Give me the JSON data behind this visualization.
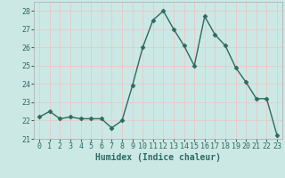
{
  "x": [
    0,
    1,
    2,
    3,
    4,
    5,
    6,
    7,
    8,
    9,
    10,
    11,
    12,
    13,
    14,
    15,
    16,
    17,
    18,
    19,
    20,
    21,
    22,
    23
  ],
  "y": [
    22.2,
    22.5,
    22.1,
    22.2,
    22.1,
    22.1,
    22.1,
    21.6,
    22.0,
    23.9,
    26.0,
    27.5,
    28.0,
    27.0,
    26.1,
    25.0,
    27.7,
    26.7,
    26.1,
    24.9,
    24.1,
    23.2,
    23.2,
    21.2
  ],
  "line_color": "#2d6b5e",
  "marker": "D",
  "markersize": 2.5,
  "linewidth": 1.0,
  "bg_color": "#cce8e4",
  "grid_color": "#e8c8c8",
  "xlabel": "Humidex (Indice chaleur)",
  "xlabel_fontsize": 7,
  "tick_fontsize": 6,
  "ylim": [
    21,
    28.5
  ],
  "yticks": [
    21,
    22,
    23,
    24,
    25,
    26,
    27,
    28
  ],
  "xlim": [
    -0.5,
    23.5
  ],
  "xticks": [
    0,
    1,
    2,
    3,
    4,
    5,
    6,
    7,
    8,
    9,
    10,
    11,
    12,
    13,
    14,
    15,
    16,
    17,
    18,
    19,
    20,
    21,
    22,
    23
  ]
}
